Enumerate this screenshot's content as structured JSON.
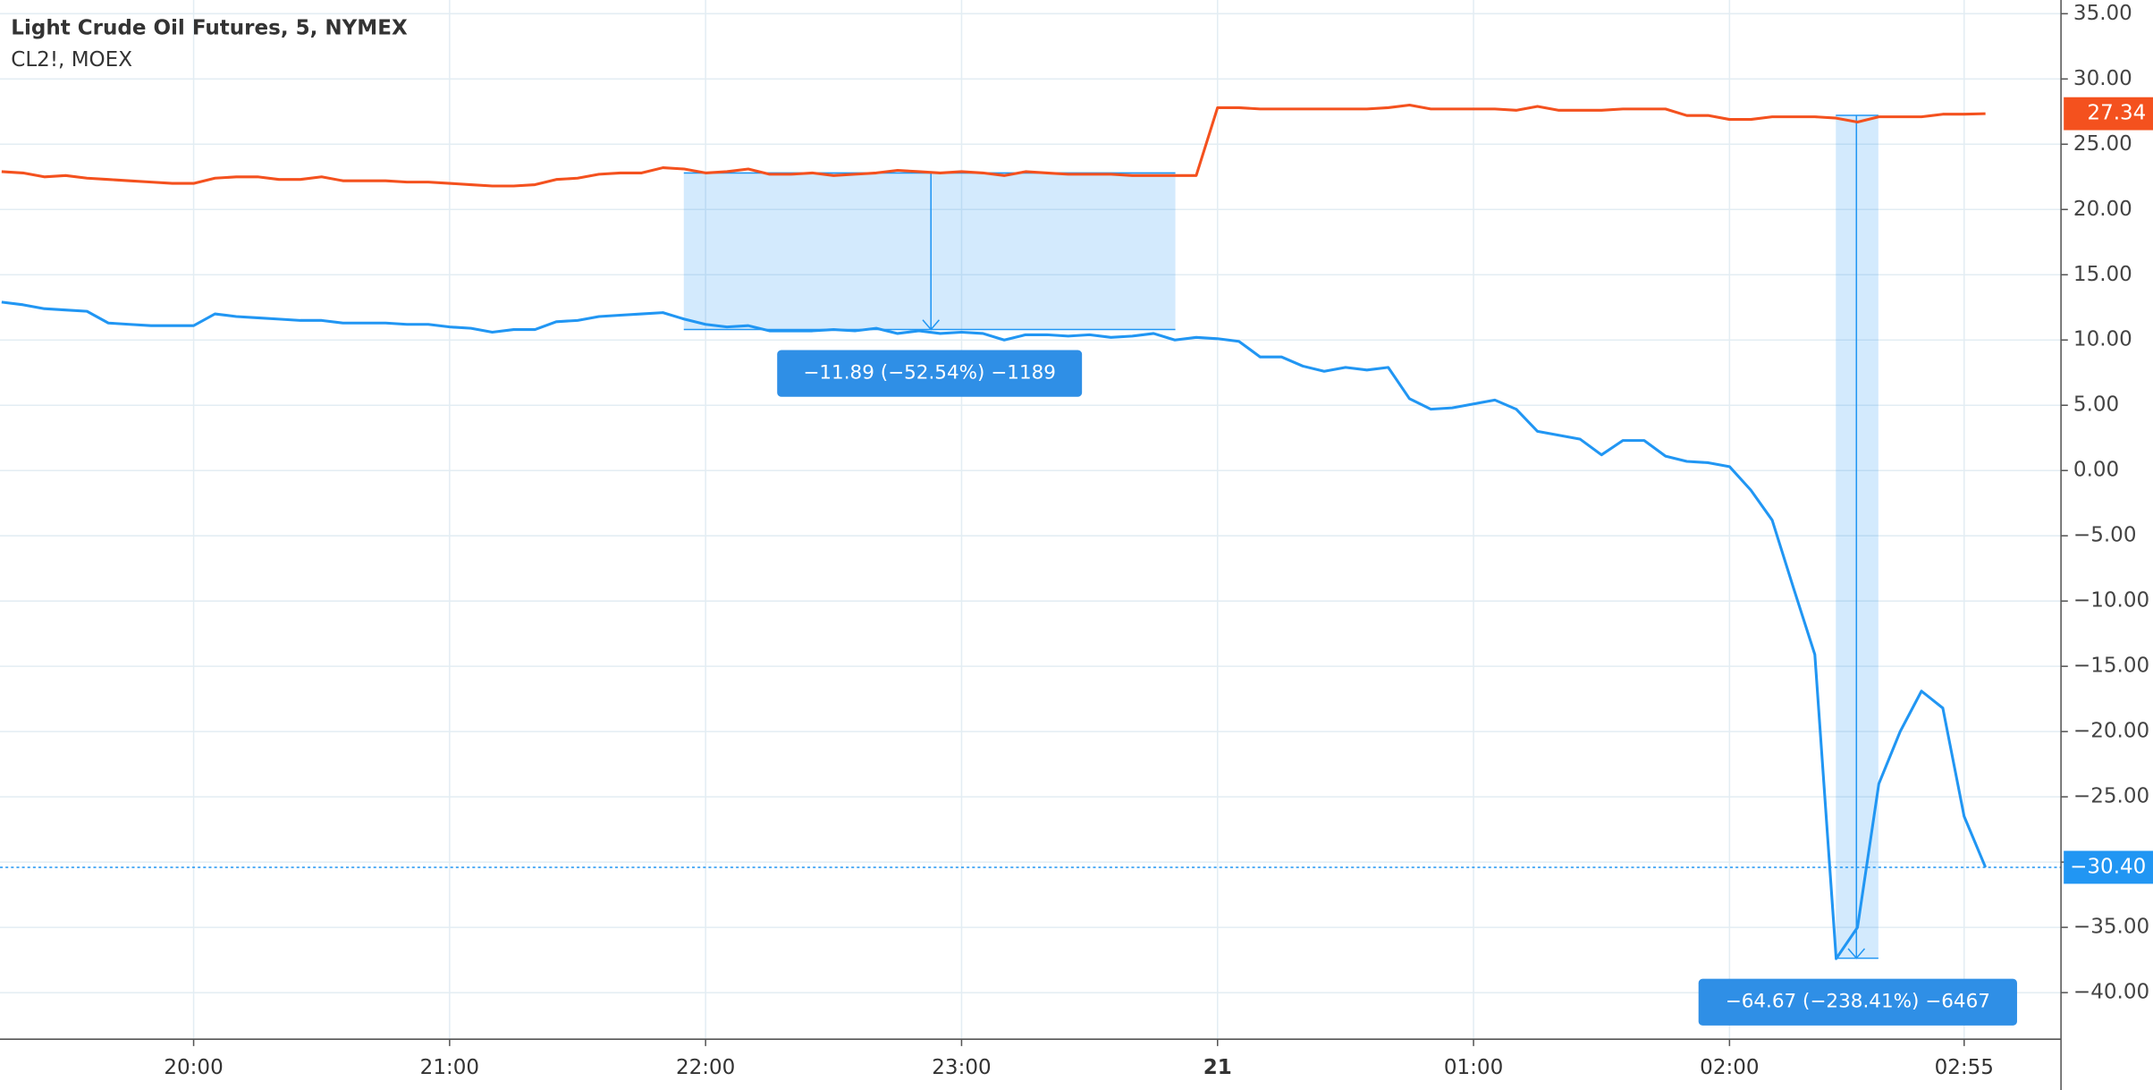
{
  "chart_data": {
    "type": "line",
    "series": [
      {
        "name": "Light Crude Oil Futures, 5, NYMEX",
        "color": "#f4511e",
        "last_value_label": "27.34",
        "values": [
          22.9,
          22.8,
          22.5,
          22.6,
          22.4,
          22.3,
          22.2,
          22.1,
          22.0,
          22.0,
          22.4,
          22.5,
          22.5,
          22.3,
          22.3,
          22.5,
          22.2,
          22.2,
          22.2,
          22.1,
          22.1,
          22.0,
          21.9,
          21.8,
          21.8,
          21.9,
          22.3,
          22.4,
          22.7,
          22.8,
          22.8,
          23.2,
          23.1,
          22.8,
          22.9,
          23.1,
          22.7,
          22.7,
          22.8,
          22.6,
          22.7,
          22.8,
          23.0,
          22.9,
          22.8,
          22.9,
          22.8,
          22.6,
          22.9,
          22.8,
          22.7,
          22.7,
          22.7,
          22.6,
          22.6,
          22.6,
          22.6,
          27.8,
          27.8,
          27.7,
          27.7,
          27.7,
          27.7,
          27.7,
          27.7,
          27.8,
          28.0,
          27.7,
          27.7,
          27.7,
          27.7,
          27.6,
          27.9,
          27.6,
          27.6,
          27.6,
          27.7,
          27.7,
          27.7,
          27.2,
          27.2,
          26.9,
          26.9,
          27.1,
          27.1,
          27.1,
          27.0,
          26.7,
          27.1,
          27.1,
          27.1,
          27.3,
          27.3,
          27.34
        ]
      },
      {
        "name": "CL2!, MOEX",
        "color": "#2196f3",
        "last_value_label": "−30.40",
        "values": [
          12.9,
          12.7,
          12.4,
          12.3,
          12.2,
          11.3,
          11.2,
          11.1,
          11.1,
          11.1,
          12.0,
          11.8,
          11.7,
          11.6,
          11.5,
          11.5,
          11.3,
          11.3,
          11.3,
          11.2,
          11.2,
          11.0,
          10.9,
          10.6,
          10.8,
          10.8,
          11.4,
          11.5,
          11.8,
          11.9,
          12.0,
          12.1,
          11.6,
          11.2,
          11.0,
          11.1,
          10.7,
          10.7,
          10.7,
          10.8,
          10.7,
          10.9,
          10.5,
          10.7,
          10.5,
          10.6,
          10.5,
          10.0,
          10.4,
          10.4,
          10.3,
          10.4,
          10.2,
          10.3,
          10.5,
          10.0,
          10.2,
          10.1,
          9.9,
          8.7,
          8.7,
          8.0,
          7.6,
          7.9,
          7.7,
          7.9,
          5.5,
          4.7,
          4.8,
          5.1,
          5.4,
          4.7,
          3.0,
          2.7,
          2.4,
          1.2,
          2.3,
          2.3,
          1.1,
          0.7,
          0.6,
          0.3,
          -1.5,
          -3.8,
          -9.0,
          -14.1,
          -37.4,
          -35.0,
          -24.0,
          -20.0,
          -16.9,
          -18.2,
          -26.5,
          -30.4
        ]
      }
    ],
    "categories": [
      null,
      null,
      null,
      null,
      null,
      null,
      null,
      null,
      null,
      "20:00",
      null,
      null,
      null,
      null,
      null,
      null,
      null,
      null,
      null,
      null,
      null,
      "21:00",
      null,
      null,
      null,
      null,
      null,
      null,
      null,
      null,
      null,
      null,
      null,
      "22:00",
      null,
      null,
      null,
      null,
      null,
      null,
      null,
      null,
      null,
      null,
      null,
      "23:00",
      null,
      null,
      null,
      null,
      null,
      null,
      null,
      null,
      null,
      null,
      null,
      "21",
      null,
      null,
      null,
      null,
      null,
      null,
      null,
      null,
      null,
      null,
      null,
      "01:00",
      null,
      null,
      null,
      null,
      null,
      null,
      null,
      null,
      null,
      null,
      null,
      "02:00",
      null,
      null,
      null,
      null,
      null,
      null,
      null,
      null,
      null,
      null,
      "02:55",
      null
    ],
    "ylim": [
      -43.57,
      36.05
    ],
    "yticks": [
      {
        "value": 35,
        "label": "35.00"
      },
      {
        "value": 30,
        "label": "30.00"
      },
      {
        "value": 25,
        "label": "25.00"
      },
      {
        "value": 20,
        "label": "20.00"
      },
      {
        "value": 15,
        "label": "15.00"
      },
      {
        "value": 10,
        "label": "10.00"
      },
      {
        "value": 5,
        "label": "5.00"
      },
      {
        "value": 0,
        "label": "0.00"
      },
      {
        "value": -5,
        "label": "−5.00"
      },
      {
        "value": -10,
        "label": "−10.00"
      },
      {
        "value": -15,
        "label": "−15.00"
      },
      {
        "value": -20,
        "label": "−20.00"
      },
      {
        "value": -25,
        "label": "−25.00"
      },
      {
        "value": -30,
        "label": "−30.00"
      },
      {
        "value": -35,
        "label": "−35.00"
      },
      {
        "value": -40,
        "label": "−40.00"
      }
    ],
    "grid": true,
    "annotations": [
      "−11.89 (−52.54%) −1189",
      "−64.67 (−238.41%) −6467"
    ]
  }
}
